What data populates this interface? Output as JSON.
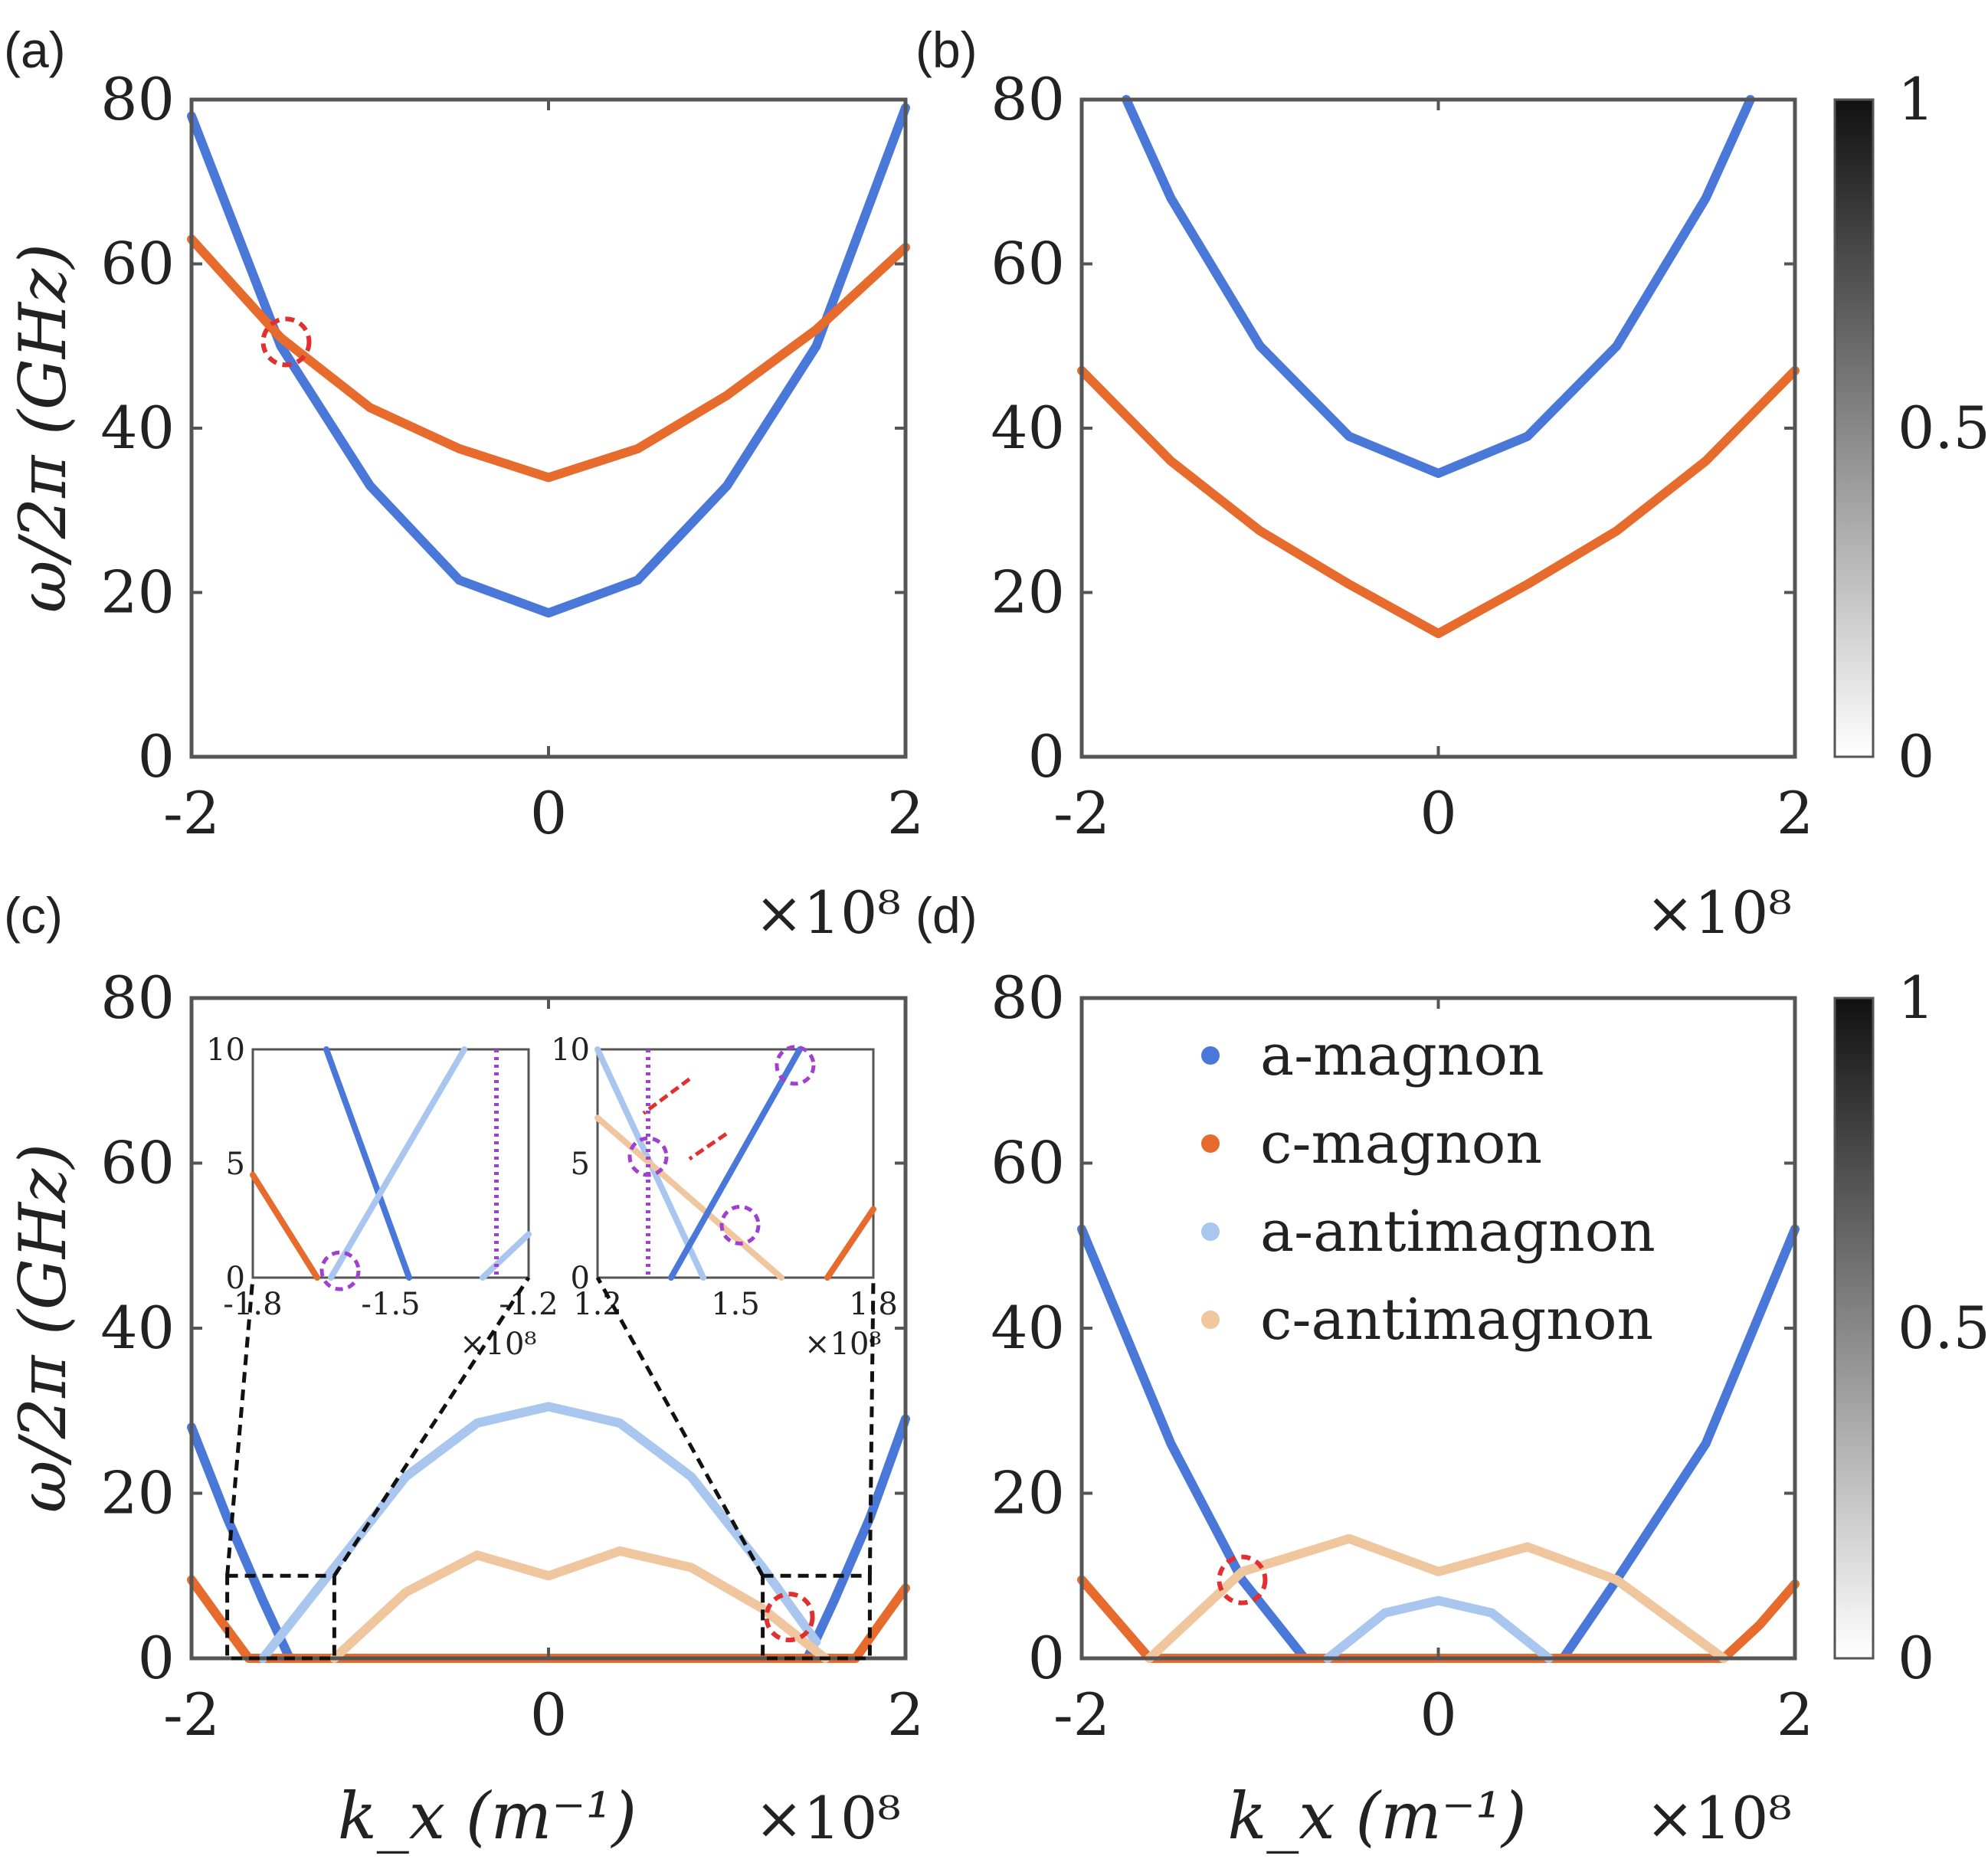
{
  "figure": {
    "colors": {
      "a_magnon": "#4a78d8",
      "c_magnon": "#e66b2c",
      "a_antimagnon": "#a9c6ee",
      "c_antimagnon": "#f0c69e",
      "highlight_red": "#e03030",
      "highlight_purple": "#a040d0",
      "frame": "#555555"
    },
    "colorbar": {
      "ticks": [
        "1",
        "0.5",
        "0"
      ]
    },
    "legend": {
      "items": [
        {
          "label": "a-magnon",
          "color": "#4a78d8"
        },
        {
          "label": "c-magnon",
          "color": "#e66b2c"
        },
        {
          "label": "a-antimagnon",
          "color": "#a9c6ee"
        },
        {
          "label": "c-antimagnon",
          "color": "#f0c69e"
        }
      ]
    }
  },
  "chart_data": [
    {
      "panel": "(a)",
      "type": "line",
      "xlabel": "",
      "ylabel": "ω/2π (GHz)",
      "xlim": [
        -2,
        2
      ],
      "ylim": [
        0,
        80
      ],
      "xticks": [
        "-2",
        "0",
        "2"
      ],
      "yticks": [
        "0",
        "20",
        "40",
        "60",
        "80"
      ],
      "x_multiplier": "×10⁸",
      "series": [
        {
          "name": "a-magnon",
          "x": [
            -2,
            -1.5,
            -1,
            -0.5,
            0,
            0.5,
            1,
            1.5,
            2
          ],
          "y": [
            78,
            50,
            33,
            21.5,
            17.5,
            21.5,
            33,
            50,
            79
          ]
        },
        {
          "name": "c-magnon",
          "x": [
            -2,
            -1.5,
            -1,
            -0.5,
            0,
            0.5,
            1,
            1.5,
            2
          ],
          "y": [
            63,
            51,
            42.5,
            37.5,
            34,
            37.5,
            44,
            52,
            62
          ]
        }
      ],
      "annotations": [
        {
          "shape": "circle",
          "color": "red",
          "x": -1.47,
          "y": 50.5
        }
      ]
    },
    {
      "panel": "(b)",
      "type": "line",
      "xlabel": "",
      "ylabel": "",
      "xlim": [
        -2,
        2
      ],
      "ylim": [
        0,
        80
      ],
      "xticks": [
        "-2",
        "0",
        "2"
      ],
      "yticks": [
        "0",
        "20",
        "40",
        "60",
        "80"
      ],
      "x_multiplier": "×10⁸",
      "series": [
        {
          "name": "a-magnon",
          "x": [
            -1.75,
            -1.5,
            -1,
            -0.5,
            0,
            0.5,
            1,
            1.5,
            1.75
          ],
          "y": [
            80,
            68,
            50,
            39,
            34.5,
            39,
            50,
            68,
            80
          ]
        },
        {
          "name": "c-magnon",
          "x": [
            -2,
            -1.5,
            -1,
            -0.5,
            0,
            0.5,
            1,
            1.5,
            2
          ],
          "y": [
            47,
            36,
            27.5,
            21,
            15,
            21,
            27.5,
            36,
            47
          ]
        }
      ]
    },
    {
      "panel": "(c)",
      "type": "line",
      "xlabel": "k_x (m⁻¹)",
      "ylabel": "ω/2π (GHz)",
      "xlim": [
        -2,
        2
      ],
      "ylim": [
        0,
        80
      ],
      "xticks": [
        "-2",
        "0",
        "2"
      ],
      "yticks": [
        "0",
        "20",
        "40",
        "60",
        "80"
      ],
      "x_multiplier": "×10⁸",
      "series": [
        {
          "name": "a-magnon",
          "x": [
            -2,
            -1.8,
            -1.6,
            -1.45,
            1.45,
            1.6,
            1.8,
            2
          ],
          "y": [
            28,
            17,
            7,
            0,
            0,
            7,
            17,
            29
          ]
        },
        {
          "name": "c-magnon",
          "x": [
            -2,
            -1.85,
            -1.68,
            1.72,
            1.85,
            2
          ],
          "y": [
            9.5,
            5,
            0,
            0,
            4,
            8.5
          ]
        },
        {
          "name": "a-antimagnon",
          "x": [
            -1.6,
            -1.2,
            -0.8,
            -0.4,
            0,
            0.4,
            0.8,
            1.2,
            1.5
          ],
          "y": [
            0,
            11,
            22,
            28.5,
            30.5,
            28.5,
            22,
            11,
            2
          ]
        },
        {
          "name": "c-antimagnon",
          "x": [
            -1.2,
            -0.8,
            -0.4,
            0,
            0.4,
            0.8,
            1.2,
            1.55
          ],
          "y": [
            0,
            8,
            12.5,
            10,
            13,
            11,
            6,
            0
          ]
        }
      ],
      "insets": [
        {
          "xlim": [
            -1.8,
            -1.2
          ],
          "ylim": [
            0,
            10
          ],
          "xticks": [
            "-1.8",
            "-1.5",
            "-1.2"
          ],
          "yticks": [
            "0",
            "5",
            "10"
          ],
          "x_multiplier": "×10⁸"
        },
        {
          "xlim": [
            1.2,
            1.8
          ],
          "ylim": [
            0,
            10
          ],
          "xticks": [
            "1.2",
            "1.5",
            "1.8"
          ],
          "yticks": [
            "0",
            "5",
            "10"
          ],
          "x_multiplier": "×10⁸"
        }
      ],
      "annotations": [
        {
          "shape": "circle",
          "color": "red",
          "x": 1.35,
          "y": 5
        }
      ]
    },
    {
      "panel": "(d)",
      "type": "line",
      "xlabel": "k_x (m⁻¹)",
      "ylabel": "",
      "xlim": [
        -2,
        2
      ],
      "ylim": [
        0,
        80
      ],
      "xticks": [
        "-2",
        "0",
        "2"
      ],
      "yticks": [
        "0",
        "20",
        "40",
        "60",
        "80"
      ],
      "x_multiplier": "×10⁸",
      "series": [
        {
          "name": "a-magnon",
          "x": [
            -2,
            -1.5,
            -1.1,
            -0.75,
            0.7,
            1,
            1.5,
            2
          ],
          "y": [
            52,
            26,
            9.5,
            0,
            0,
            9.5,
            26,
            52
          ]
        },
        {
          "name": "c-magnon",
          "x": [
            -2,
            -1.8,
            -1.62,
            1.6,
            1.8,
            2
          ],
          "y": [
            9.5,
            4.5,
            0,
            0,
            4,
            9
          ]
        },
        {
          "name": "a-antimagnon",
          "x": [
            -0.62,
            -0.3,
            0,
            0.3,
            0.62
          ],
          "y": [
            0,
            5.5,
            7,
            5.5,
            0
          ]
        },
        {
          "name": "c-antimagnon",
          "x": [
            -1.62,
            -1.1,
            -0.5,
            0,
            0.5,
            1,
            1.6
          ],
          "y": [
            0,
            10.5,
            14.5,
            10.5,
            13.5,
            9.5,
            0
          ]
        }
      ],
      "annotations": [
        {
          "shape": "circle",
          "color": "red",
          "x": -1.1,
          "y": 9.5
        }
      ]
    }
  ]
}
